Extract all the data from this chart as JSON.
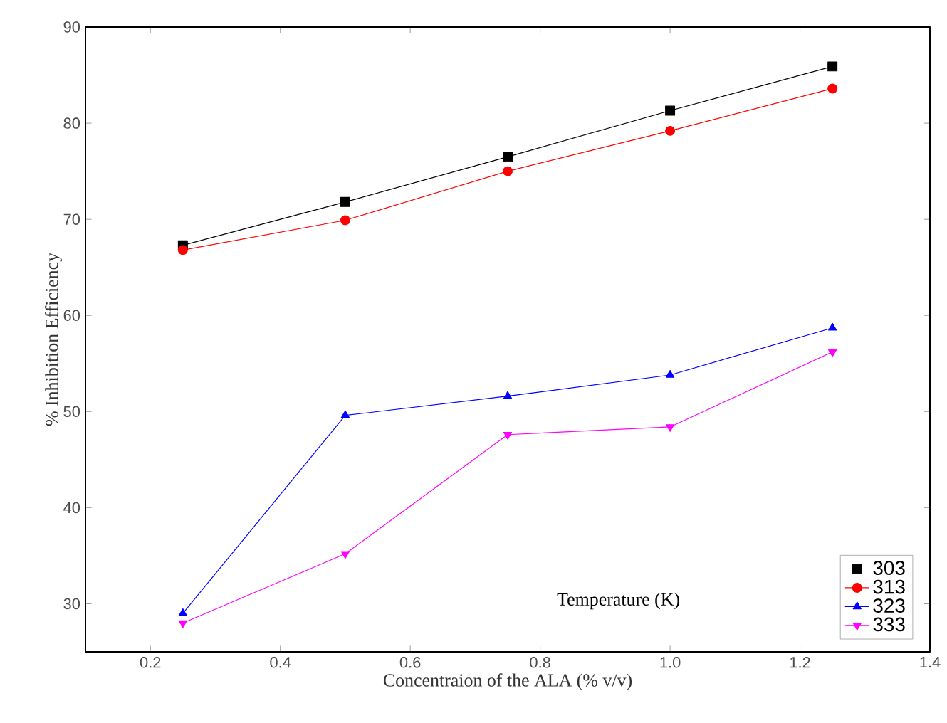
{
  "chart_data": {
    "type": "line",
    "xlabel": "Concentraion of the ALA (% v/v)",
    "ylabel": "% Inhibition Efficiency",
    "legend_title": "Temperature (K)",
    "x": [
      0.25,
      0.5,
      0.75,
      1.0,
      1.25
    ],
    "series": [
      {
        "name": "303",
        "color": "#000000",
        "marker": "square",
        "values": [
          67.3,
          71.8,
          76.5,
          81.3,
          85.9
        ]
      },
      {
        "name": "313",
        "color": "#ff0000",
        "marker": "circle",
        "values": [
          66.8,
          69.9,
          75.0,
          79.2,
          83.6
        ]
      },
      {
        "name": "323",
        "color": "#0000ff",
        "marker": "triangle",
        "values": [
          29.0,
          49.6,
          51.6,
          53.8,
          58.7
        ]
      },
      {
        "name": "333",
        "color": "#ff00ff",
        "marker": "triangle-down",
        "values": [
          28.0,
          35.2,
          47.6,
          48.4,
          56.2
        ]
      }
    ],
    "xlim": [
      0.1,
      1.4
    ],
    "ylim": [
      25,
      90
    ],
    "xticks": [
      {
        "value": 0.2,
        "label": "0.2"
      },
      {
        "value": 0.4,
        "label": "0.4"
      },
      {
        "value": 0.6,
        "label": "0.6"
      },
      {
        "value": 0.8,
        "label": "0.8"
      },
      {
        "value": 1.0,
        "label": "1.0"
      },
      {
        "value": 1.2,
        "label": "1.2"
      },
      {
        "value": 1.4,
        "label": "1.4"
      }
    ],
    "yticks": [
      30,
      40,
      50,
      60,
      70,
      80,
      90
    ],
    "grid": false,
    "legend": "bottom right",
    "line_style": "solid"
  }
}
